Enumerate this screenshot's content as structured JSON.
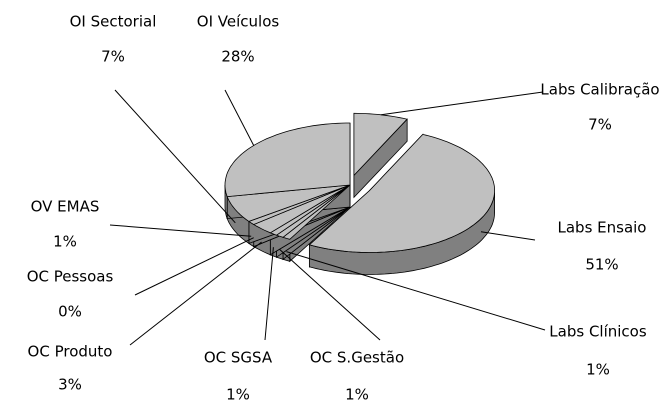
{
  "chart_data": {
    "type": "pie",
    "categories": [
      "Labs Calibração",
      "Labs Ensaio",
      "Labs Clínicos",
      "OC S.Gestão",
      "OC SGSA",
      "OC Produto",
      "OC Pessoas",
      "OV EMAS",
      "OI Sectorial",
      "OI Veículos"
    ],
    "values": [
      7,
      51,
      1,
      1,
      1,
      3,
      0,
      1,
      7,
      28
    ],
    "value_labels": [
      "7%",
      "51%",
      "1%",
      "1%",
      "1%",
      "3%",
      "0%",
      "1%",
      "7%",
      "28%"
    ],
    "color": "#c0c0c0"
  }
}
